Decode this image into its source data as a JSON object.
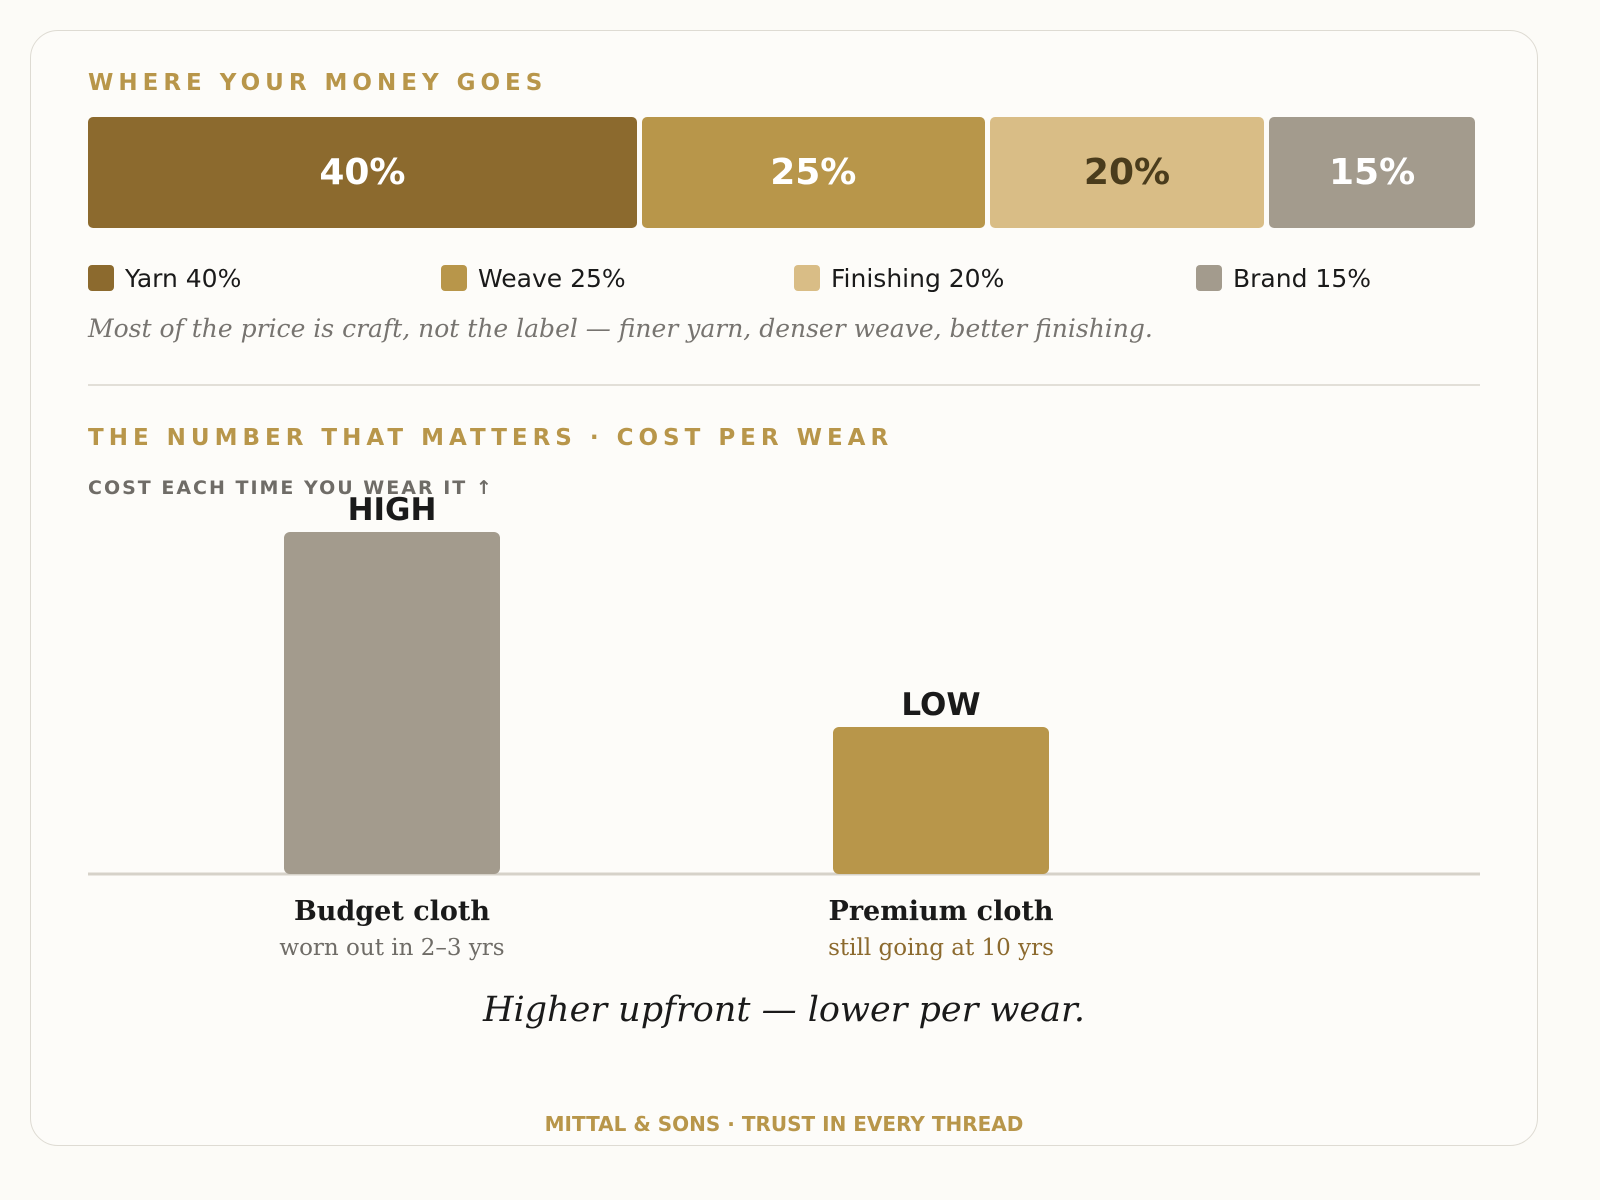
{
  "colors": {
    "accent": "#b8964a",
    "yarn": "#8c6a2e",
    "weave": "#b8964a",
    "finishing": "#d9bd86",
    "brand": "#a39b8d",
    "dark_text": "#4a3c1c",
    "light_text": "#ffffff"
  },
  "section1": {
    "title": "WHERE YOUR MONEY GOES",
    "note": "Most of the price is craft, not the label — finer yarn, denser weave, better finishing."
  },
  "section2": {
    "title": "THE NUMBER THAT MATTERS · COST PER WEAR",
    "axis_note": "COST EACH TIME YOU WEAR IT ↑",
    "tagline": "Higher upfront — lower per wear."
  },
  "chart_data": [
    {
      "type": "bar",
      "orientation": "horizontal-stacked",
      "categories": [
        "Yarn",
        "Weave",
        "Finishing",
        "Brand"
      ],
      "values": [
        40,
        25,
        20,
        15
      ],
      "bar_labels": [
        "40%",
        "25%",
        "20%",
        "15%"
      ],
      "legend": [
        "Yarn 40%",
        "Weave 25%",
        "Finishing 20%",
        "Brand 15%"
      ],
      "legend_position": "bottom",
      "title": "WHERE YOUR MONEY GOES"
    },
    {
      "type": "bar",
      "categories": [
        "Budget cloth",
        "Premium cloth"
      ],
      "subtitles": [
        "worn out in 2–3 yrs",
        "still going at 10 yrs"
      ],
      "values": [
        1.0,
        0.43
      ],
      "value_labels": [
        "HIGH",
        "LOW"
      ],
      "ylabel": "COST EACH TIME YOU WEAR IT ↑",
      "title": "THE NUMBER THAT MATTERS · COST PER WEAR",
      "grid": false
    }
  ],
  "footer": {
    "text": "MITTAL & SONS  ·  TRUST IN EVERY THREAD"
  }
}
